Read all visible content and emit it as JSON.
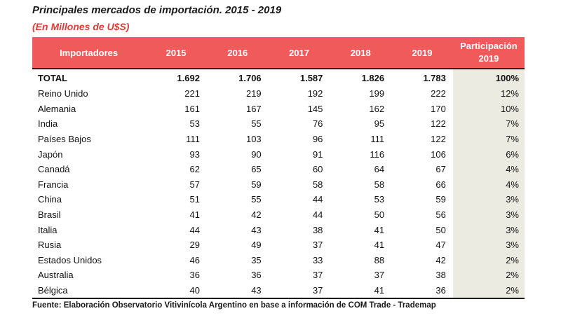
{
  "title": "Principales mercados de importación. 2015 - 2019",
  "subtitle": "(En Millones de U$S)",
  "table": {
    "headers": {
      "importers": "Importadores",
      "y2015": "2015",
      "y2016": "2016",
      "y2017": "2017",
      "y2018": "2018",
      "y2019": "2019",
      "share_line1": "Participación",
      "share_line2": "2019"
    },
    "rows": [
      {
        "name": "TOTAL",
        "v2015": "1.692",
        "v2016": "1.706",
        "v2017": "1.587",
        "v2018": "1.826",
        "v2019": "1.783",
        "share": "100%"
      },
      {
        "name": "Reino Unido",
        "v2015": "221",
        "v2016": "219",
        "v2017": "192",
        "v2018": "199",
        "v2019": "222",
        "share": "12%"
      },
      {
        "name": "Alemania",
        "v2015": "161",
        "v2016": "167",
        "v2017": "145",
        "v2018": "162",
        "v2019": "170",
        "share": "10%"
      },
      {
        "name": "India",
        "v2015": "53",
        "v2016": "55",
        "v2017": "76",
        "v2018": "95",
        "v2019": "122",
        "share": "7%"
      },
      {
        "name": "Países Bajos",
        "v2015": "111",
        "v2016": "103",
        "v2017": "96",
        "v2018": "111",
        "v2019": "122",
        "share": "7%"
      },
      {
        "name": "Japón",
        "v2015": "93",
        "v2016": "90",
        "v2017": "91",
        "v2018": "116",
        "v2019": "106",
        "share": "6%"
      },
      {
        "name": "Canadá",
        "v2015": "62",
        "v2016": "65",
        "v2017": "60",
        "v2018": "64",
        "v2019": "67",
        "share": "4%"
      },
      {
        "name": "Francia",
        "v2015": "57",
        "v2016": "59",
        "v2017": "58",
        "v2018": "58",
        "v2019": "66",
        "share": "4%"
      },
      {
        "name": "China",
        "v2015": "51",
        "v2016": "55",
        "v2017": "44",
        "v2018": "53",
        "v2019": "59",
        "share": "3%"
      },
      {
        "name": "Brasil",
        "v2015": "41",
        "v2016": "42",
        "v2017": "44",
        "v2018": "50",
        "v2019": "56",
        "share": "3%"
      },
      {
        "name": "Italia",
        "v2015": "44",
        "v2016": "43",
        "v2017": "38",
        "v2018": "41",
        "v2019": "50",
        "share": "3%"
      },
      {
        "name": "Rusia",
        "v2015": "29",
        "v2016": "49",
        "v2017": "37",
        "v2018": "41",
        "v2019": "47",
        "share": "3%"
      },
      {
        "name": "Estados Unidos",
        "v2015": "46",
        "v2016": "35",
        "v2017": "33",
        "v2018": "88",
        "v2019": "42",
        "share": "2%"
      },
      {
        "name": "Australia",
        "v2015": "36",
        "v2016": "36",
        "v2017": "37",
        "v2018": "37",
        "v2019": "38",
        "share": "2%"
      },
      {
        "name": "Bélgica",
        "v2015": "40",
        "v2016": "43",
        "v2017": "37",
        "v2018": "41",
        "v2019": "36",
        "share": "2%"
      }
    ]
  },
  "source": "Fuente: Elaboración Observatorio Vitivinícola Argentino en base a información de COM Trade - Trademap",
  "colors": {
    "header_bg": "#f05a5a",
    "subtitle": "#e53935",
    "share_column_bg": "#ebebe2"
  }
}
